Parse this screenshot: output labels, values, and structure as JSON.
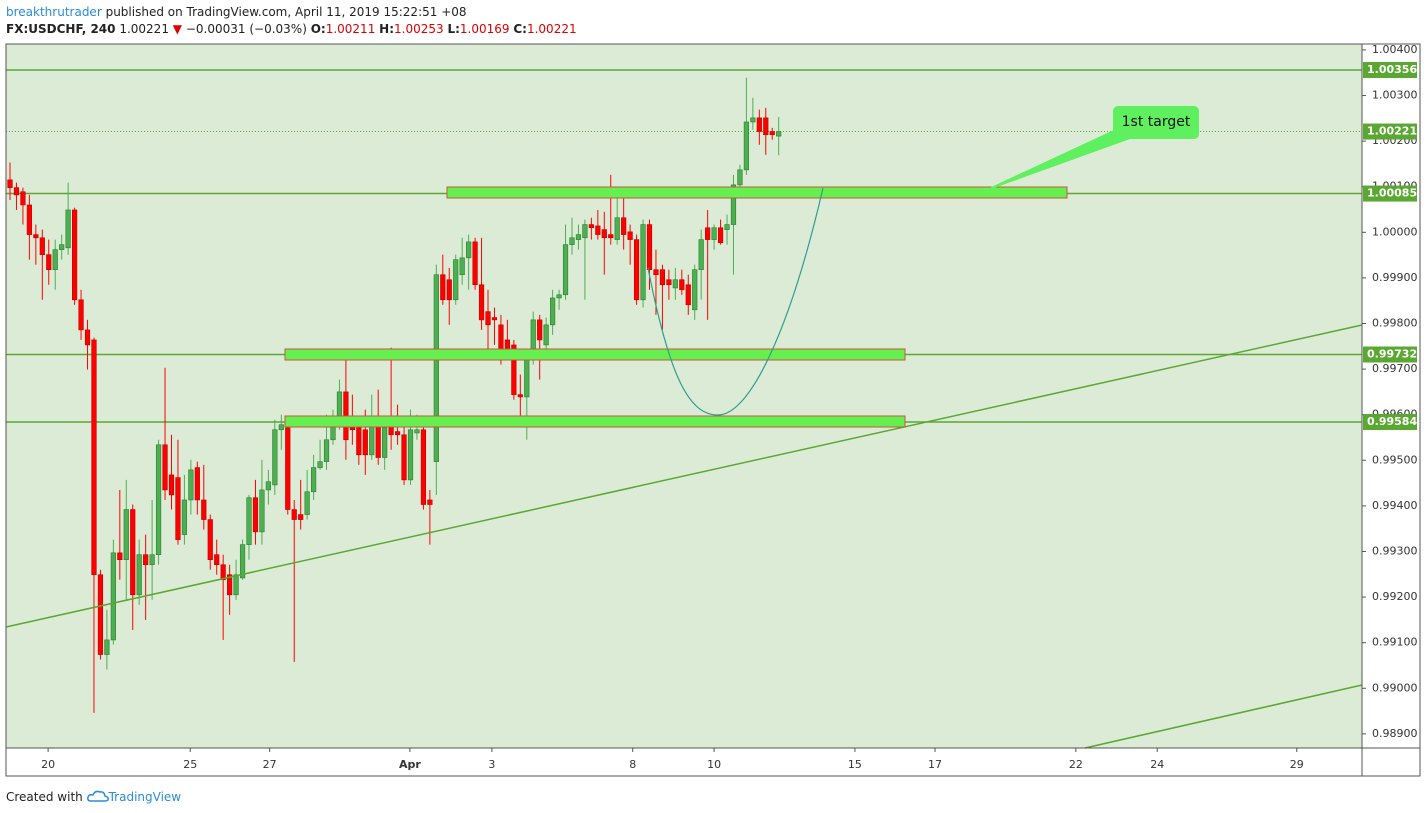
{
  "header": {
    "author": "breakthrutrader",
    "published": "published on TradingView.com, April 11, 2019 15:22:51 +08",
    "symbol": "FX:USDCHF, 240",
    "last": "1.00221",
    "change": "−0.00031 (−0.03%)",
    "open_label": "O:",
    "open": "1.00211",
    "high_label": "H:",
    "high": "1.00253",
    "low_label": "L:",
    "low": "1.00169",
    "close_label": "C:",
    "close": "1.00221"
  },
  "annotation": "1st target",
  "footer": {
    "created": "Created with",
    "brand": "TradingView"
  },
  "chart_data": {
    "type": "candlestick",
    "open": [
      1.00115,
      1.00098,
      1.00089,
      1.0006,
      0.99995,
      0.99988,
      0.99951,
      0.99918,
      0.99962,
      0.99966,
      1.00049,
      0.99852,
      0.99786,
      0.99764,
      0.99249,
      0.99074,
      0.99106,
      0.99297,
      0.99282,
      0.99392,
      0.99205,
      0.99293,
      0.99271,
      0.99293,
      0.99534,
      0.99468,
      0.99462,
      0.99337,
      0.99413,
      0.99484,
      0.99413,
      0.9937,
      0.99293,
      0.99271,
      0.99249,
      0.99205,
      0.99242,
      0.99315,
      0.99418,
      0.99343,
      0.99435,
      0.99446,
      0.99567,
      0.99571,
      0.99392,
      0.99381,
      0.99381,
      0.99431,
      0.99484,
      0.99497,
      0.99545,
      0.99589,
      0.9965,
      0.99589,
      0.99578,
      0.99567,
      0.99512,
      0.99589,
      0.99506,
      0.99578,
      0.99563,
      0.99556,
      0.99457,
      0.9956,
      0.99567,
      0.99413,
      0.99497,
      0.99907,
      0.99896,
      0.99852,
      0.99907,
      0.99944,
      0.99979,
      0.99885,
      0.99826,
      0.99813,
      0.99797,
      0.99764,
      0.99753,
      0.99644,
      0.99639,
      0.99721,
      0.99808,
      0.99753,
      0.99797,
      0.99856,
      0.99863,
      0.99973,
      0.99984,
      0.99988,
      1.00017,
      1.00014,
      1.00006,
      0.99995,
      0.99984,
      1.00032,
      1.00001,
      0.99984,
      0.99852,
      1.00017,
      0.99918,
      0.99918,
      0.99896,
      0.99878,
      0.99896,
      0.99885,
      0.9983,
      0.99918,
      1.0001,
      0.99984,
      1.0001,
      1.00006,
      1.00017,
      1.00104,
      1.00137,
      1.00242,
      1.00251,
      1.00251,
      1.00221,
      1.00211
    ],
    "high": [
      1.00153,
      1.00109,
      1.00098,
      1.00082,
      1.00017,
      1.00006,
      0.99984,
      0.99984,
      0.99995,
      1.00109,
      1.00054,
      0.99874,
      0.99808,
      0.99769,
      0.9926,
      0.99172,
      0.99326,
      0.99435,
      0.99457,
      0.99403,
      0.99326,
      0.99337,
      0.99413,
      0.99545,
      0.99703,
      0.99556,
      0.99545,
      0.99468,
      0.99501,
      0.99497,
      0.9949,
      0.99381,
      0.99326,
      0.99293,
      0.99271,
      0.99282,
      0.99326,
      0.99424,
      0.99457,
      0.99501,
      0.99479,
      0.99589,
      0.996,
      0.99589,
      0.99413,
      0.99457,
      0.99479,
      0.99512,
      0.99545,
      0.996,
      0.99611,
      0.99677,
      0.99721,
      0.99644,
      0.99593,
      0.99611,
      0.99644,
      0.99655,
      0.99589,
      0.99747,
      0.99622,
      0.99589,
      0.99611,
      0.996,
      0.99589,
      0.99435,
      0.99929,
      0.99951,
      0.99922,
      0.99951,
      0.99988,
      0.99995,
      0.99988,
      0.99988,
      0.99874,
      0.99835,
      0.99819,
      0.99808,
      0.99764,
      0.99688,
      0.99738,
      0.99826,
      0.99819,
      0.99813,
      0.99874,
      0.99874,
      1.00017,
      1.00032,
      1.00017,
      1.00028,
      1.00032,
      1.00049,
      1.00045,
      1.00126,
      1.00082,
      1.00082,
      1.00017,
      0.99995,
      1.00028,
      1.00028,
      0.99962,
      0.99929,
      0.99918,
      0.99922,
      0.99918,
      0.99907,
      0.99929,
      1.00006,
      1.00049,
      1.00017,
      1.00028,
      1.00039,
      1.00126,
      1.00148,
      1.00339,
      1.00295,
      1.00269,
      1.00273,
      1.00229,
      1.00253
    ],
    "low": [
      1.00071,
      1.00049,
      1.00017,
      0.9994,
      0.99929,
      0.99852,
      0.99885,
      0.99874,
      0.9994,
      0.99951,
      0.99841,
      0.99764,
      0.99699,
      0.98946,
      0.99063,
      0.99041,
      0.99096,
      0.99238,
      0.99194,
      0.99128,
      0.99183,
      0.9915,
      0.99194,
      0.99271,
      0.99413,
      0.99392,
      0.99315,
      0.99315,
      0.99381,
      0.99381,
      0.99348,
      0.9926,
      0.99249,
      0.99106,
      0.99161,
      0.99194,
      0.99238,
      0.99282,
      0.99315,
      0.99315,
      0.99403,
      0.99424,
      0.99523,
      0.99381,
      0.99058,
      0.99348,
      0.9937,
      0.99413,
      0.99479,
      0.99479,
      0.99534,
      0.99567,
      0.99501,
      0.99534,
      0.9949,
      0.99468,
      0.99501,
      0.9949,
      0.99479,
      0.99523,
      0.99534,
      0.99446,
      0.99446,
      0.99545,
      0.99392,
      0.99315,
      0.99424,
      0.99841,
      0.99797,
      0.99841,
      0.99885,
      0.99874,
      0.99874,
      0.99786,
      0.99731,
      0.99753,
      0.9971,
      0.99721,
      0.99633,
      0.99578,
      0.99545,
      0.9971,
      0.99677,
      0.99731,
      0.99775,
      0.9983,
      0.99852,
      0.99951,
      0.99962,
      0.99852,
      0.99984,
      0.99984,
      0.99907,
      0.99973,
      0.99973,
      0.99962,
      0.99929,
      0.99841,
      0.99835,
      0.99874,
      0.99819,
      0.99786,
      0.99852,
      0.99852,
      0.99863,
      0.99819,
      0.99808,
      0.99852,
      0.99808,
      0.99962,
      0.99973,
      0.99973,
      0.99907,
      1.00093,
      1.00126,
      1.00225,
      1.00192,
      1.0017,
      1.00203,
      1.00169
    ],
    "close": [
      1.00098,
      1.00082,
      1.0006,
      0.99995,
      0.99988,
      0.99951,
      0.99918,
      0.99962,
      0.99973,
      1.00049,
      0.99852,
      0.99786,
      0.99753,
      0.99249,
      0.99074,
      0.99106,
      0.99297,
      0.99282,
      0.99392,
      0.99205,
      0.99293,
      0.99271,
      0.99293,
      0.99534,
      0.99435,
      0.99424,
      0.99326,
      0.99413,
      0.99479,
      0.99413,
      0.9937,
      0.99282,
      0.99271,
      0.99238,
      0.99205,
      0.99249,
      0.99315,
      0.99418,
      0.99343,
      0.99435,
      0.99453,
      0.99567,
      0.99578,
      0.99392,
      0.9937,
      0.9937,
      0.99431,
      0.99484,
      0.99497,
      0.99545,
      0.99589,
      0.9965,
      0.99545,
      0.99567,
      0.99512,
      0.99512,
      0.99589,
      0.99506,
      0.99571,
      0.99556,
      0.99556,
      0.99457,
      0.99567,
      0.99567,
      0.99403,
      0.99403,
      0.99907,
      0.99852,
      0.99852,
      0.9994,
      0.99944,
      0.99979,
      0.99885,
      0.99808,
      0.99797,
      0.99808,
      0.99721,
      0.99738,
      0.99644,
      0.99639,
      0.99721,
      0.99808,
      0.99764,
      0.99797,
      0.99856,
      0.99863,
      0.99973,
      0.99988,
      0.99995,
      1.00017,
      1.0001,
      0.99995,
      0.99988,
      0.99988,
      1.00032,
      0.99995,
      0.99984,
      0.99852,
      1.00017,
      0.99918,
      0.99907,
      0.99885,
      0.99885,
      0.99896,
      0.99874,
      0.99841,
      0.99918,
      0.99984,
      0.99984,
      1.0001,
      0.99977,
      1.00017,
      1.00104,
      1.00137,
      1.00242,
      1.00251,
      1.00221,
      1.00214,
      1.00214,
      1.00221
    ],
    "up_color": "#4caf50",
    "down_color": "#ff0000",
    "level_color": "#5aa832",
    "xlim": [
      -0.62,
      209.3
    ],
    "xticks": [
      {
        "value": 5.9,
        "label": "20"
      },
      {
        "value": 27.9,
        "label": "25"
      },
      {
        "value": 40.2,
        "label": "27"
      },
      {
        "value": 61.9,
        "label": "Apr"
      },
      {
        "value": 74.6,
        "label": "3"
      },
      {
        "value": 96.4,
        "label": "8"
      },
      {
        "value": 109,
        "label": "10"
      },
      {
        "value": 130.8,
        "label": "15"
      },
      {
        "value": 143.2,
        "label": "17"
      },
      {
        "value": 165,
        "label": "22"
      },
      {
        "value": 177.6,
        "label": "24"
      },
      {
        "value": 199.2,
        "label": "29"
      }
    ],
    "ylim": [
      0.98869,
      1.00413
    ],
    "yticks": [
      {
        "value": 1.004,
        "label": "1.00400"
      },
      {
        "value": 1.003,
        "label": "1.00300"
      },
      {
        "value": 1.002,
        "label": "1.00200"
      },
      {
        "value": 1.001,
        "label": "1.00100"
      },
      {
        "value": 1.0,
        "label": "1.00000"
      },
      {
        "value": 0.999,
        "label": "0.99900"
      },
      {
        "value": 0.998,
        "label": "0.99800"
      },
      {
        "value": 0.997,
        "label": "0.99700"
      },
      {
        "value": 0.996,
        "label": "0.99600"
      },
      {
        "value": 0.995,
        "label": "0.99500"
      },
      {
        "value": 0.994,
        "label": "0.99400"
      },
      {
        "value": 0.993,
        "label": "0.99300"
      },
      {
        "value": 0.992,
        "label": "0.99200"
      },
      {
        "value": 0.991,
        "label": "0.99100"
      },
      {
        "value": 0.99,
        "label": "0.99000"
      },
      {
        "value": 0.989,
        "label": "0.98900"
      }
    ],
    "levels": [
      1.00356,
      1.00085,
      0.99732,
      0.99584
    ],
    "last_price": 1.00221
  }
}
